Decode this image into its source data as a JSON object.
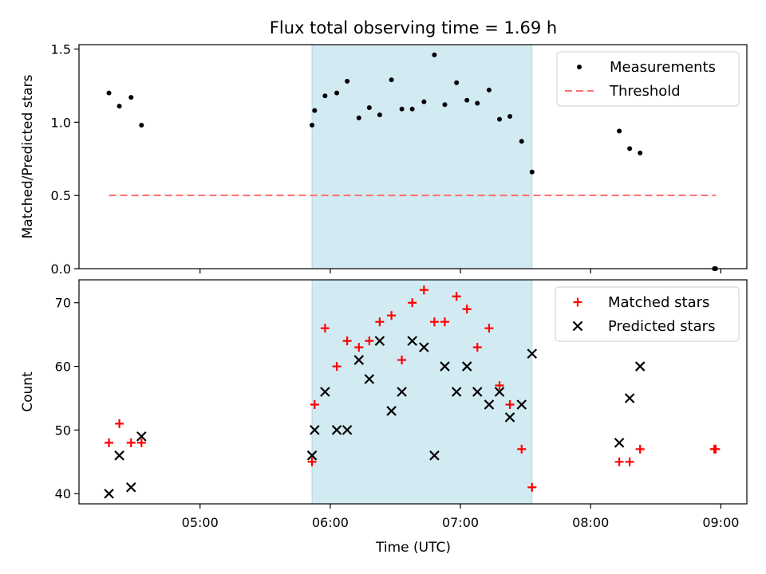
{
  "chart_data": {
    "title": "Flux total observing time = 1.69 h",
    "xlabel": "Time (UTC)",
    "x_ticks": [
      "05:00",
      "06:00",
      "07:00",
      "08:00",
      "09:00"
    ],
    "x_tick_hours": [
      5,
      6,
      7,
      8,
      9
    ],
    "xlim_hours": [
      4.07,
      9.2
    ],
    "shaded_region_hours": [
      5.86,
      7.55
    ],
    "colors": {
      "shade": "#add8e6",
      "measurement": "#000000",
      "threshold": "#ff6f6f",
      "matched": "#ff0000",
      "predicted": "#000000"
    },
    "panels": [
      {
        "type": "scatter",
        "ylabel": "Matched/Predicted stars",
        "ylim": [
          0,
          1.53
        ],
        "y_ticks": [
          "0.0",
          "0.5",
          "1.0",
          "1.5"
        ],
        "y_tick_values": [
          0,
          0.5,
          1.0,
          1.5
        ],
        "legend_position": "top-right",
        "series": [
          {
            "name": "Measurements",
            "marker": "dot",
            "points": [
              [
                4.3,
                1.2
              ],
              [
                4.38,
                1.11
              ],
              [
                4.47,
                1.17
              ],
              [
                4.55,
                0.98
              ],
              [
                5.86,
                0.98
              ],
              [
                5.88,
                1.08
              ],
              [
                5.96,
                1.18
              ],
              [
                6.05,
                1.2
              ],
              [
                6.13,
                1.28
              ],
              [
                6.22,
                1.03
              ],
              [
                6.3,
                1.1
              ],
              [
                6.38,
                1.05
              ],
              [
                6.47,
                1.29
              ],
              [
                6.55,
                1.09
              ],
              [
                6.63,
                1.09
              ],
              [
                6.72,
                1.14
              ],
              [
                6.8,
                1.46
              ],
              [
                6.88,
                1.12
              ],
              [
                6.97,
                1.27
              ],
              [
                7.05,
                1.15
              ],
              [
                7.13,
                1.13
              ],
              [
                7.22,
                1.22
              ],
              [
                7.3,
                1.02
              ],
              [
                7.38,
                1.04
              ],
              [
                7.47,
                0.87
              ],
              [
                7.55,
                0.66
              ],
              [
                8.22,
                0.94
              ],
              [
                8.3,
                0.82
              ],
              [
                8.38,
                0.79
              ],
              [
                8.95,
                0.0
              ],
              [
                8.96,
                0.0
              ]
            ]
          },
          {
            "name": "Threshold",
            "marker": "dashed-line",
            "points": [
              [
                4.3,
                0.5
              ],
              [
                8.96,
                0.5
              ]
            ]
          }
        ]
      },
      {
        "type": "scatter",
        "ylabel": "Count",
        "ylim": [
          38.4,
          73.6
        ],
        "y_ticks": [
          "40",
          "50",
          "60",
          "70"
        ],
        "y_tick_values": [
          40,
          50,
          60,
          70
        ],
        "legend_position": "top-right",
        "series": [
          {
            "name": "Matched stars",
            "marker": "plus",
            "points": [
              [
                4.3,
                48
              ],
              [
                4.38,
                51
              ],
              [
                4.47,
                48
              ],
              [
                4.55,
                48
              ],
              [
                5.86,
                45
              ],
              [
                5.88,
                54
              ],
              [
                5.96,
                66
              ],
              [
                6.05,
                60
              ],
              [
                6.13,
                64
              ],
              [
                6.22,
                63
              ],
              [
                6.3,
                64
              ],
              [
                6.38,
                67
              ],
              [
                6.47,
                68
              ],
              [
                6.55,
                61
              ],
              [
                6.63,
                70
              ],
              [
                6.72,
                72
              ],
              [
                6.8,
                67
              ],
              [
                6.88,
                67
              ],
              [
                6.97,
                71
              ],
              [
                7.05,
                69
              ],
              [
                7.13,
                63
              ],
              [
                7.22,
                66
              ],
              [
                7.3,
                57
              ],
              [
                7.38,
                54
              ],
              [
                7.47,
                47
              ],
              [
                7.55,
                41
              ],
              [
                8.22,
                45
              ],
              [
                8.3,
                45
              ],
              [
                8.38,
                47
              ],
              [
                8.95,
                47
              ],
              [
                8.96,
                47
              ]
            ]
          },
          {
            "name": "Predicted stars",
            "marker": "x",
            "points": [
              [
                4.3,
                40
              ],
              [
                4.38,
                46
              ],
              [
                4.47,
                41
              ],
              [
                4.55,
                49
              ],
              [
                5.86,
                46
              ],
              [
                5.88,
                50
              ],
              [
                5.96,
                56
              ],
              [
                6.05,
                50
              ],
              [
                6.13,
                50
              ],
              [
                6.22,
                61
              ],
              [
                6.3,
                58
              ],
              [
                6.38,
                64
              ],
              [
                6.47,
                53
              ],
              [
                6.55,
                56
              ],
              [
                6.63,
                64
              ],
              [
                6.72,
                63
              ],
              [
                6.8,
                46
              ],
              [
                6.88,
                60
              ],
              [
                6.97,
                56
              ],
              [
                7.05,
                60
              ],
              [
                7.13,
                56
              ],
              [
                7.22,
                54
              ],
              [
                7.3,
                56
              ],
              [
                7.38,
                52
              ],
              [
                7.47,
                54
              ],
              [
                7.55,
                62
              ],
              [
                8.22,
                48
              ],
              [
                8.3,
                55
              ],
              [
                8.38,
                60
              ]
            ]
          }
        ]
      }
    ]
  }
}
